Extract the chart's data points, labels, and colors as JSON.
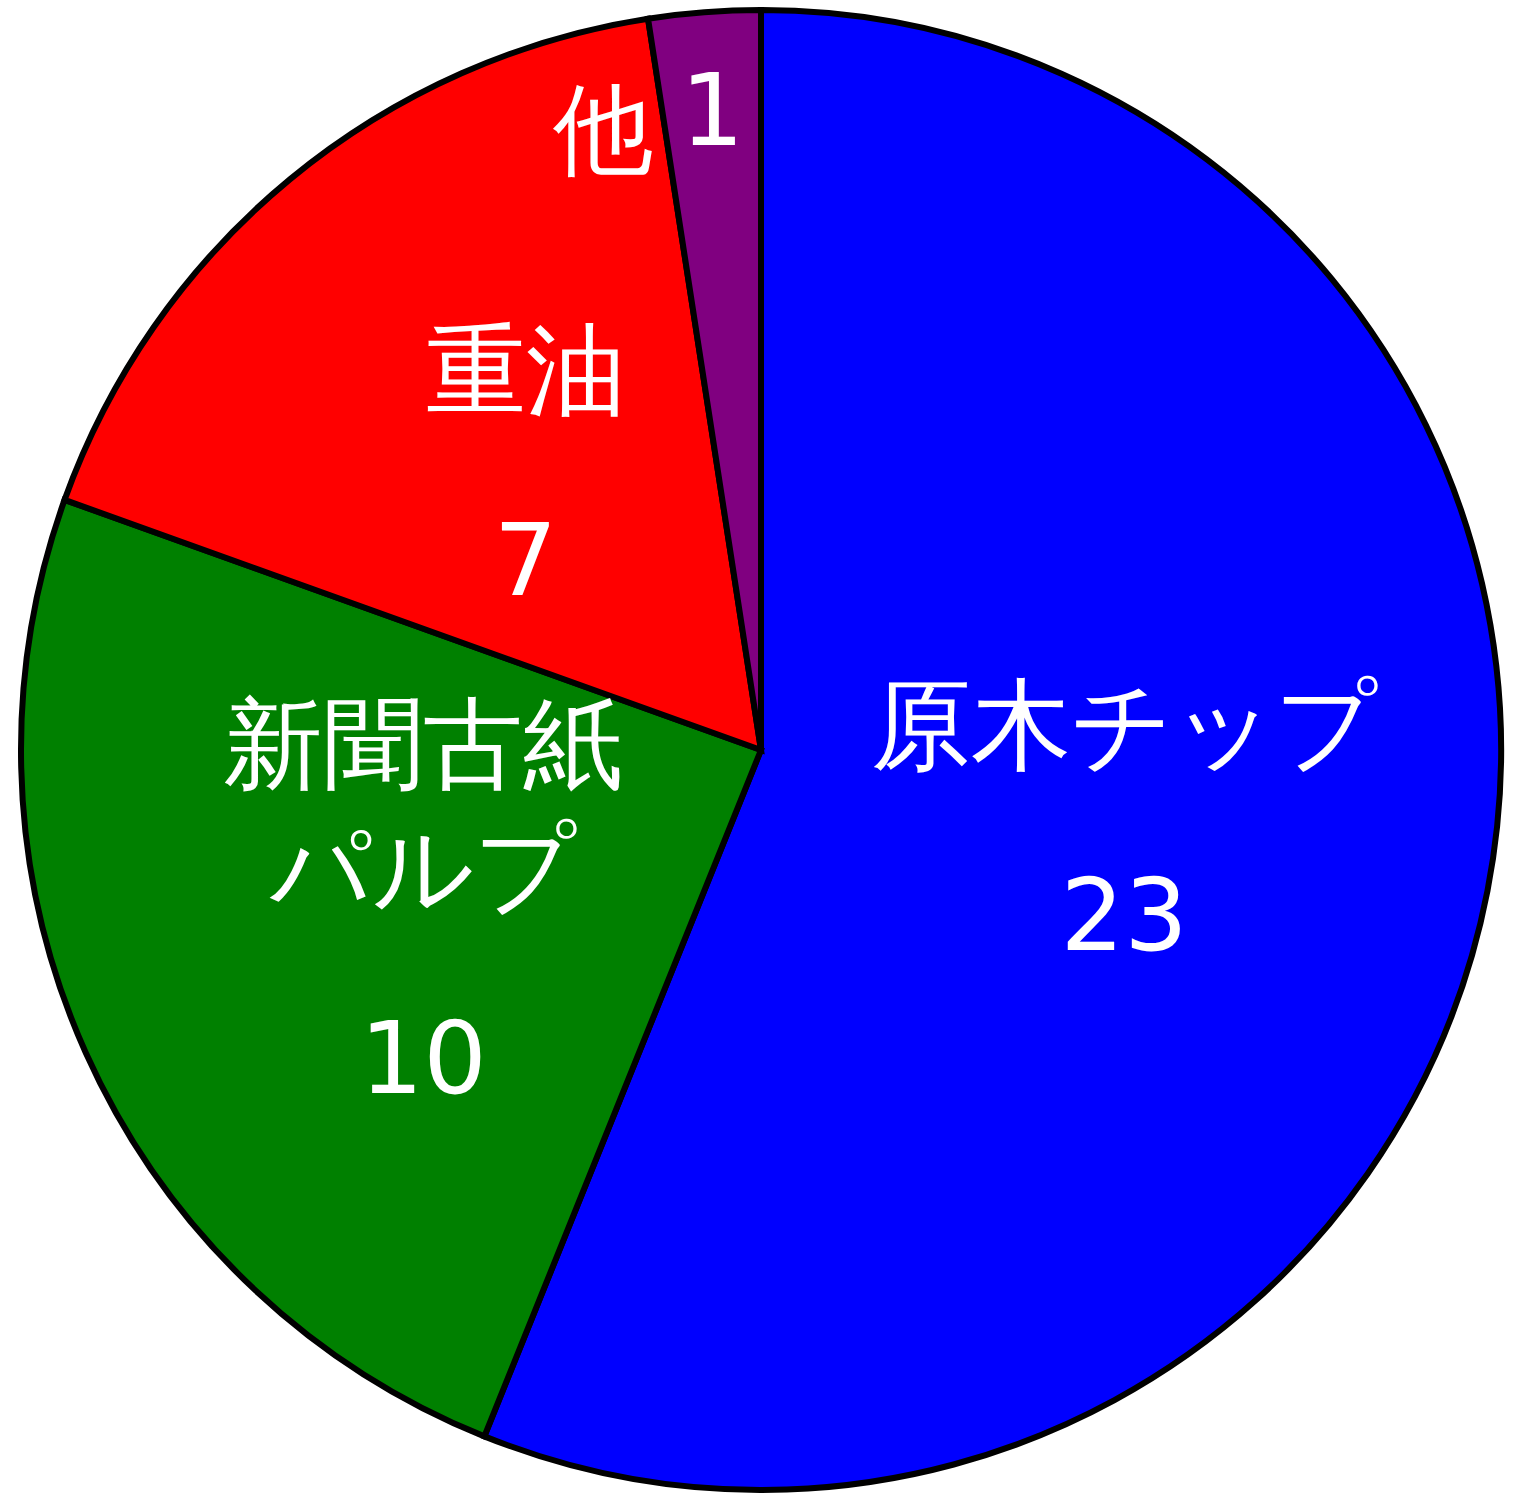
{
  "chart_data": {
    "type": "pie",
    "categories": [
      "原木チップ",
      "新聞古紙パルプ",
      "重油",
      "他"
    ],
    "values": [
      23,
      10,
      7,
      1
    ],
    "colors": [
      "#0000ff",
      "#008000",
      "#ff0000",
      "#800080"
    ],
    "data_labels": true
  }
}
